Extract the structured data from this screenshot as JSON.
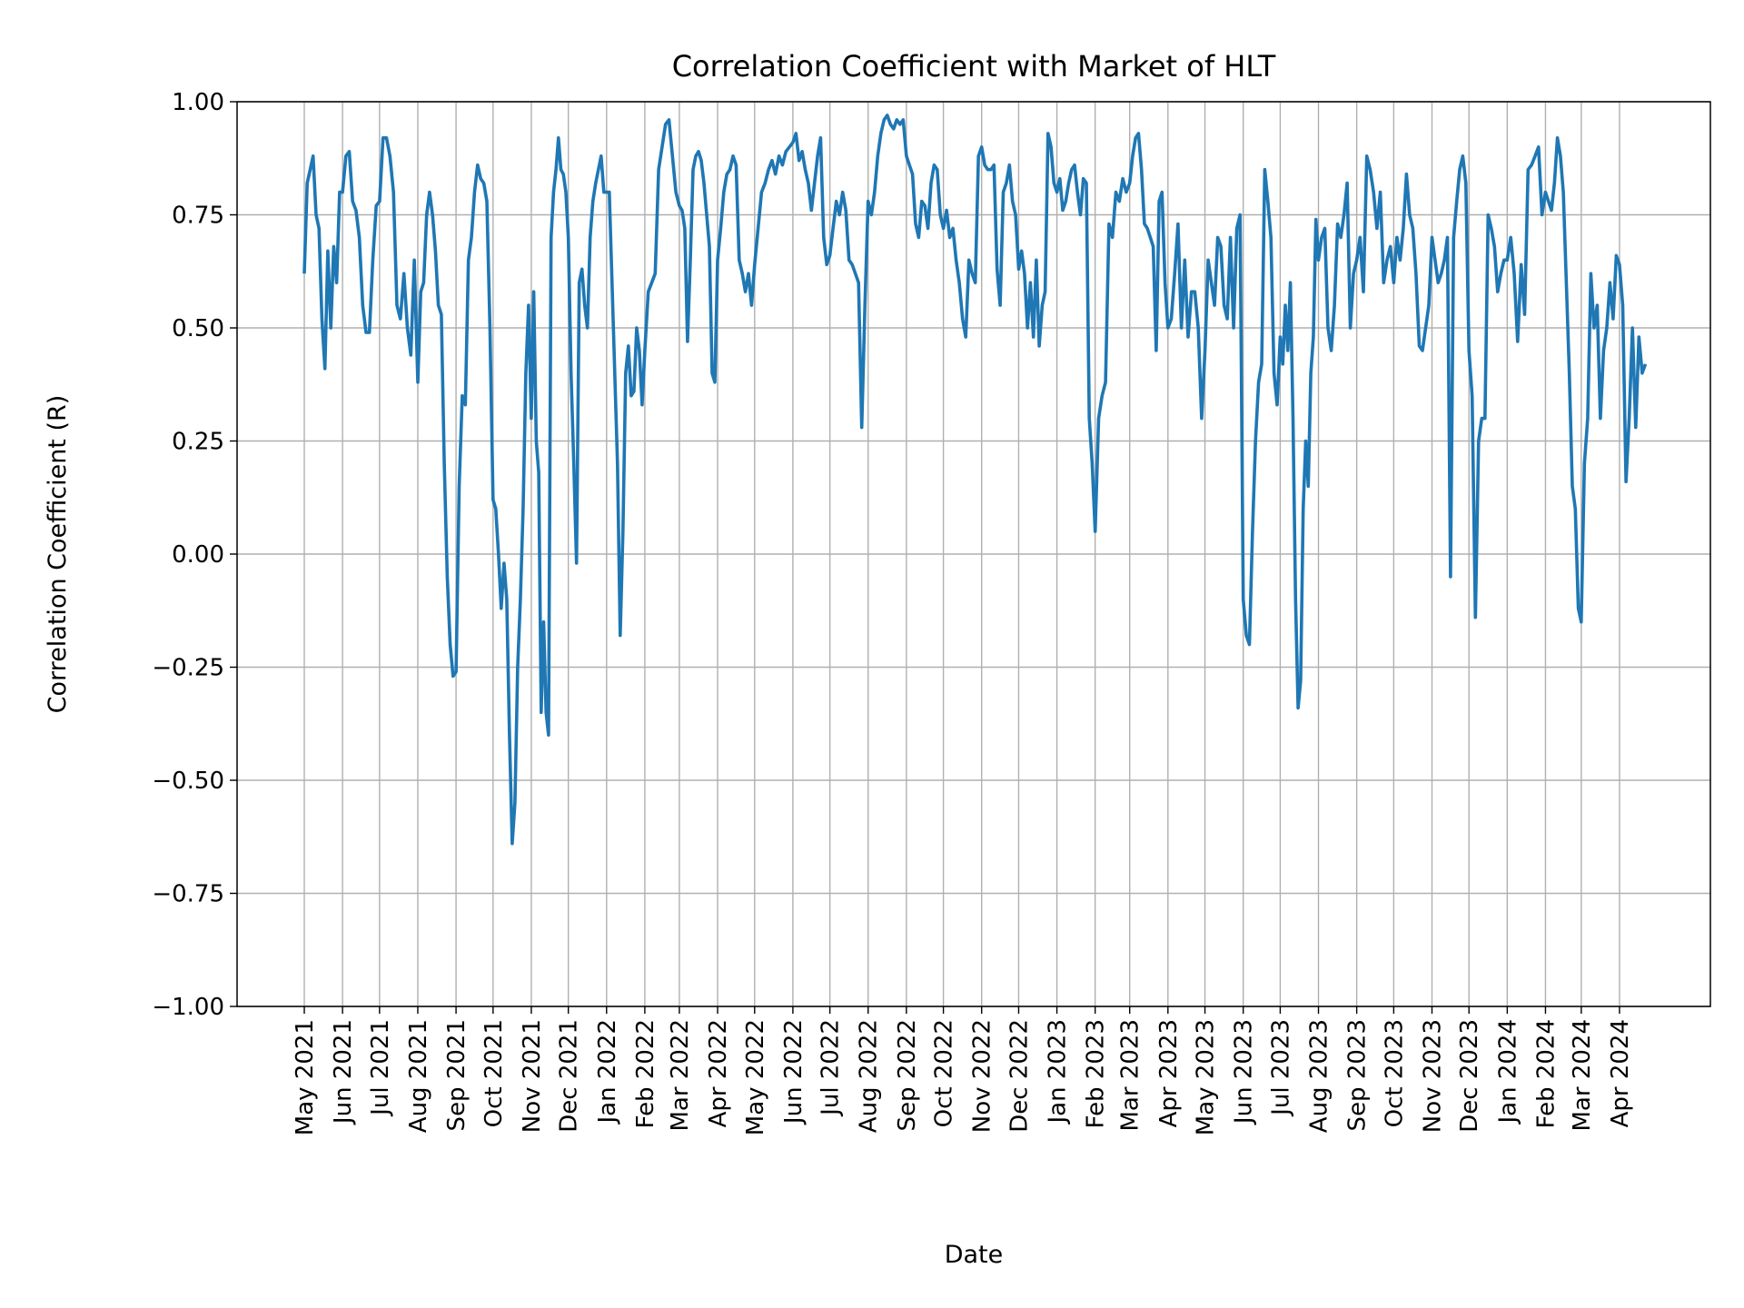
{
  "chart_data": {
    "type": "line",
    "title": "Correlation Coefficient with Market of HLT",
    "xlabel": "Date",
    "ylabel": "Correlation Coefficient (R)",
    "ylim": [
      -1.0,
      1.0
    ],
    "yticks": [
      "−1.00",
      "−0.75",
      "−0.50",
      "−0.25",
      "0.00",
      "0.25",
      "0.50",
      "0.75",
      "1.00"
    ],
    "ytick_values": [
      -1.0,
      -0.75,
      -0.5,
      -0.25,
      0.0,
      0.25,
      0.5,
      0.75,
      1.0
    ],
    "xticks": [
      "May 2021",
      "Jun 2021",
      "Jul 2021",
      "Aug 2021",
      "Sep 2021",
      "Oct 2021",
      "Nov 2021",
      "Dec 2021",
      "Jan 2022",
      "Feb 2022",
      "Mar 2022",
      "Apr 2022",
      "May 2022",
      "Jun 2022",
      "Jul 2022",
      "Aug 2022",
      "Sep 2022",
      "Oct 2022",
      "Nov 2022",
      "Dec 2022",
      "Jan 2023",
      "Feb 2023",
      "Mar 2023",
      "Apr 2023",
      "May 2023",
      "Jun 2023",
      "Jul 2023",
      "Aug 2023",
      "Sep 2023",
      "Oct 2023",
      "Nov 2023",
      "Dec 2023",
      "Jan 2024",
      "Feb 2024",
      "Mar 2024",
      "Apr 2024"
    ],
    "xtick_dates": [
      "2021-05-01",
      "2021-06-01",
      "2021-07-01",
      "2021-08-01",
      "2021-09-01",
      "2021-10-01",
      "2021-11-01",
      "2021-12-01",
      "2022-01-01",
      "2022-02-01",
      "2022-03-01",
      "2022-04-01",
      "2022-05-01",
      "2022-06-01",
      "2022-07-01",
      "2022-08-01",
      "2022-09-01",
      "2022-10-01",
      "2022-11-01",
      "2022-12-01",
      "2023-01-01",
      "2023-02-01",
      "2023-03-01",
      "2023-04-01",
      "2023-05-01",
      "2023-06-01",
      "2023-07-01",
      "2023-08-01",
      "2023-09-01",
      "2023-10-01",
      "2023-11-01",
      "2023-12-01",
      "2024-01-01",
      "2024-02-01",
      "2024-03-01",
      "2024-04-01"
    ],
    "x_end": "2024-04-22",
    "grid": true,
    "line_color": "#1f77b4",
    "series": [
      {
        "monthly_samples": [
          {
            "month": "2021-05",
            "values": [
              0.62,
              0.82,
              0.85,
              0.88,
              0.75,
              0.72,
              0.52,
              0.41,
              0.67,
              0.5,
              0.68,
              0.6,
              0.8
            ]
          },
          {
            "month": "2021-06",
            "values": [
              0.8,
              0.88,
              0.89,
              0.78,
              0.76,
              0.7,
              0.55,
              0.49,
              0.49,
              0.65,
              0.77
            ]
          },
          {
            "month": "2021-07",
            "values": [
              0.78,
              0.92,
              0.92,
              0.88,
              0.8,
              0.55,
              0.52,
              0.62,
              0.5,
              0.44,
              0.65
            ]
          },
          {
            "month": "2021-08",
            "values": [
              0.38,
              0.58,
              0.6,
              0.75,
              0.8,
              0.75,
              0.67,
              0.55,
              0.53,
              0.2,
              -0.05,
              -0.2,
              -0.27
            ]
          },
          {
            "month": "2021-09",
            "values": [
              -0.26,
              0.15,
              0.35,
              0.33,
              0.65,
              0.7,
              0.8,
              0.86,
              0.83,
              0.82,
              0.78,
              0.5
            ]
          },
          {
            "month": "2021-10",
            "values": [
              0.12,
              0.1,
              0.0,
              -0.12,
              -0.02,
              -0.1,
              -0.4,
              -0.64,
              -0.55,
              -0.25,
              -0.1,
              0.1,
              0.4,
              0.55
            ]
          },
          {
            "month": "2021-11",
            "values": [
              0.3,
              0.58,
              0.25,
              0.18,
              -0.35,
              -0.15,
              -0.35,
              -0.4,
              0.7,
              0.8,
              0.85,
              0.92,
              0.85,
              0.84,
              0.8
            ]
          },
          {
            "month": "2021-12",
            "values": [
              0.7,
              0.4,
              0.2,
              -0.02,
              0.6,
              0.63,
              0.55,
              0.5,
              0.7,
              0.78,
              0.82,
              0.85,
              0.88,
              0.8
            ]
          },
          {
            "month": "2022-01",
            "values": [
              0.8,
              0.8,
              0.6,
              0.4,
              0.2,
              -0.18,
              0.05,
              0.4,
              0.46,
              0.35,
              0.36,
              0.5,
              0.45,
              0.33
            ]
          },
          {
            "month": "2022-02",
            "values": [
              0.45,
              0.58,
              0.6,
              0.62,
              0.85,
              0.9,
              0.95,
              0.96,
              0.88,
              0.8
            ]
          },
          {
            "month": "2022-03",
            "values": [
              0.77,
              0.76,
              0.72,
              0.47,
              0.65,
              0.85,
              0.88,
              0.89,
              0.87,
              0.82,
              0.75,
              0.68,
              0.4,
              0.38
            ]
          },
          {
            "month": "2022-04",
            "values": [
              0.65,
              0.72,
              0.8,
              0.84,
              0.85,
              0.88,
              0.86,
              0.65,
              0.62,
              0.58,
              0.62,
              0.55
            ]
          },
          {
            "month": "2022-05",
            "values": [
              0.64,
              0.72,
              0.8,
              0.82,
              0.85,
              0.87,
              0.84,
              0.88,
              0.86,
              0.89,
              0.9
            ]
          },
          {
            "month": "2022-06",
            "values": [
              0.91,
              0.93,
              0.87,
              0.89,
              0.85,
              0.82,
              0.76,
              0.82,
              0.88,
              0.92,
              0.7,
              0.64
            ]
          },
          {
            "month": "2022-07",
            "values": [
              0.66,
              0.72,
              0.78,
              0.75,
              0.8,
              0.76,
              0.65,
              0.64,
              0.62,
              0.6,
              0.28,
              0.55
            ]
          },
          {
            "month": "2022-08",
            "values": [
              0.78,
              0.75,
              0.8,
              0.88,
              0.93,
              0.96,
              0.97,
              0.95,
              0.94,
              0.96,
              0.95,
              0.96
            ]
          },
          {
            "month": "2022-09",
            "values": [
              0.88,
              0.86,
              0.84,
              0.73,
              0.7,
              0.78,
              0.77,
              0.72,
              0.82,
              0.86,
              0.85,
              0.75
            ]
          },
          {
            "month": "2022-10",
            "values": [
              0.72,
              0.76,
              0.7,
              0.72,
              0.65,
              0.6,
              0.52,
              0.48,
              0.65,
              0.62,
              0.6,
              0.88
            ]
          },
          {
            "month": "2022-11",
            "values": [
              0.9,
              0.86,
              0.85,
              0.85,
              0.86,
              0.63,
              0.55,
              0.8,
              0.82,
              0.86,
              0.78,
              0.75
            ]
          },
          {
            "month": "2022-12",
            "values": [
              0.63,
              0.67,
              0.62,
              0.5,
              0.6,
              0.48,
              0.65,
              0.46,
              0.55,
              0.58,
              0.93,
              0.9,
              0.82
            ]
          },
          {
            "month": "2023-01",
            "values": [
              0.8,
              0.83,
              0.76,
              0.78,
              0.82,
              0.85,
              0.86,
              0.8,
              0.75,
              0.83,
              0.82,
              0.3,
              0.2
            ]
          },
          {
            "month": "2023-02",
            "values": [
              0.05,
              0.3,
              0.35,
              0.38,
              0.73,
              0.7,
              0.8,
              0.78,
              0.83,
              0.8
            ]
          },
          {
            "month": "2023-03",
            "values": [
              0.82,
              0.88,
              0.92,
              0.93,
              0.85,
              0.73,
              0.72,
              0.7,
              0.68,
              0.45,
              0.78,
              0.8,
              0.6
            ]
          },
          {
            "month": "2023-04",
            "values": [
              0.5,
              0.52,
              0.62,
              0.73,
              0.5,
              0.65,
              0.48,
              0.58,
              0.58,
              0.5,
              0.3
            ]
          },
          {
            "month": "2023-05",
            "values": [
              0.45,
              0.65,
              0.6,
              0.55,
              0.7,
              0.68,
              0.55,
              0.52,
              0.7,
              0.5,
              0.72,
              0.75
            ]
          },
          {
            "month": "2023-06",
            "values": [
              -0.1,
              -0.18,
              -0.2,
              0.05,
              0.25,
              0.38,
              0.42,
              0.85,
              0.78,
              0.7,
              0.4,
              0.33
            ]
          },
          {
            "month": "2023-07",
            "values": [
              0.48,
              0.42,
              0.55,
              0.45,
              0.6,
              0.3,
              -0.1,
              -0.34,
              -0.28,
              0.1,
              0.25,
              0.15,
              0.4,
              0.48,
              0.74
            ]
          },
          {
            "month": "2023-08",
            "values": [
              0.65,
              0.7,
              0.72,
              0.5,
              0.45,
              0.55,
              0.73,
              0.7,
              0.75,
              0.82,
              0.5,
              0.62
            ]
          },
          {
            "month": "2023-09",
            "values": [
              0.65,
              0.7,
              0.58,
              0.88,
              0.85,
              0.8,
              0.72,
              0.8,
              0.6,
              0.65,
              0.68
            ]
          },
          {
            "month": "2023-10",
            "values": [
              0.6,
              0.7,
              0.65,
              0.72,
              0.84,
              0.75,
              0.72,
              0.62,
              0.46,
              0.45,
              0.5,
              0.55
            ]
          },
          {
            "month": "2023-11",
            "values": [
              0.7,
              0.65,
              0.6,
              0.62,
              0.65,
              0.7,
              -0.05,
              0.7,
              0.78,
              0.85,
              0.88,
              0.82
            ]
          },
          {
            "month": "2023-12",
            "values": [
              0.45,
              0.35,
              -0.14,
              0.25,
              0.3,
              0.3,
              0.75,
              0.72,
              0.68,
              0.58,
              0.62,
              0.65
            ]
          },
          {
            "month": "2024-01",
            "values": [
              0.65,
              0.7,
              0.62,
              0.47,
              0.64,
              0.53,
              0.85,
              0.86,
              0.88,
              0.9,
              0.75
            ]
          },
          {
            "month": "2024-02",
            "values": [
              0.8,
              0.78,
              0.76,
              0.82,
              0.92,
              0.88,
              0.8,
              0.6,
              0.4,
              0.15,
              0.1,
              -0.12
            ]
          },
          {
            "month": "2024-03",
            "values": [
              -0.15,
              0.2,
              0.3,
              0.62,
              0.5,
              0.55,
              0.3,
              0.45,
              0.5,
              0.6,
              0.52,
              0.66
            ]
          },
          {
            "month": "2024-04",
            "values": [
              0.64,
              0.55,
              0.16,
              0.3,
              0.5,
              0.28,
              0.48,
              0.4,
              0.42
            ]
          }
        ]
      }
    ]
  }
}
